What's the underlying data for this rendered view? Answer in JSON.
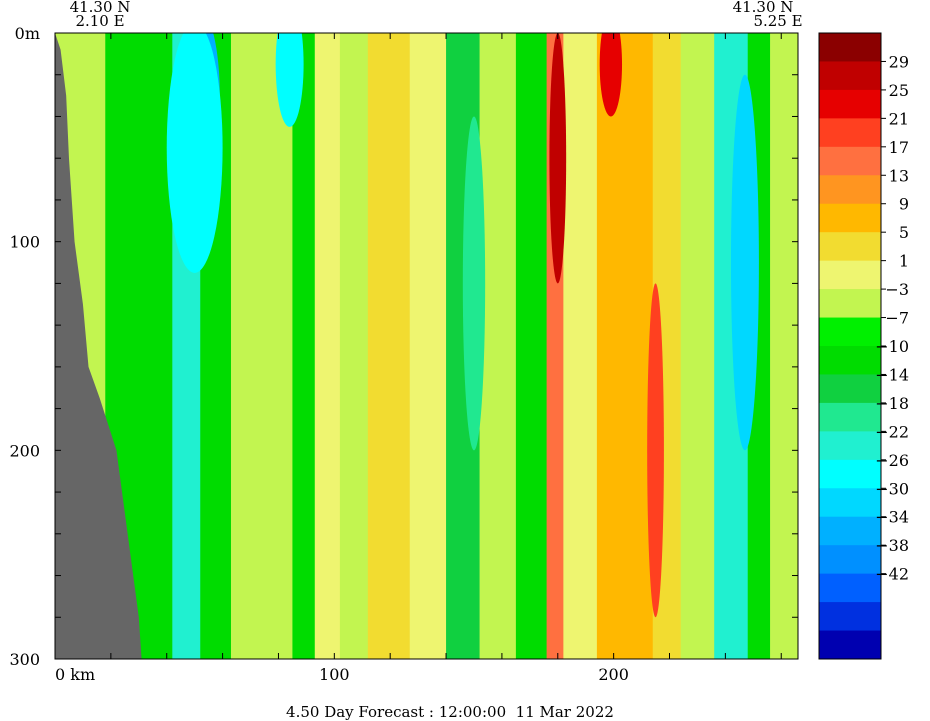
{
  "chart_data": {
    "type": "heatmap",
    "title": "4.50 Day Forecast : 12:00:00  11 Mar 2022",
    "corner_left": {
      "lat": "41.30 N",
      "lon": "2.10 E"
    },
    "corner_right": {
      "lat": "41.30 N",
      "lon": "5.25 E"
    },
    "xlabel": "km",
    "xlim": [
      0,
      266
    ],
    "ylim": [
      0,
      300
    ],
    "x_ticks": [
      {
        "value": 0,
        "label": "0 km"
      },
      {
        "value": 100,
        "label": "100"
      },
      {
        "value": 200,
        "label": "200"
      }
    ],
    "y_ticks": [
      {
        "value": 0,
        "label": "0m"
      },
      {
        "value": 100,
        "label": "100"
      },
      {
        "value": 200,
        "label": "200"
      },
      {
        "value": 300,
        "label": "300"
      }
    ],
    "colorbar": {
      "labels": [
        "29",
        "25",
        "21",
        "17",
        "13",
        "9",
        "5",
        "1",
        "−3",
        "−7",
        "−10",
        "−14",
        "−18",
        "−22",
        "−26",
        "−30",
        "−34",
        "−38",
        "−42"
      ],
      "colors": [
        "#8b0000",
        "#c00000",
        "#e60000",
        "#ff4020",
        "#ff7040",
        "#ff9520",
        "#ffb800",
        "#f2dc30",
        "#eef570",
        "#c2f550",
        "#00f000",
        "#00dc00",
        "#10d040",
        "#20e890",
        "#20f0d0",
        "#00ffff",
        "#00d8ff",
        "#00b0ff",
        "#0090ff",
        "#0060ff",
        "#0030e0",
        "#0000b0"
      ]
    },
    "land_color": "#666666",
    "land_profile_km": [
      [
        0,
        0
      ],
      [
        2,
        8
      ],
      [
        4,
        30
      ],
      [
        5,
        60
      ],
      [
        7,
        100
      ],
      [
        10,
        130
      ],
      [
        12,
        160
      ],
      [
        16,
        175
      ],
      [
        22,
        200
      ],
      [
        25,
        230
      ],
      [
        28,
        260
      ],
      [
        30,
        280
      ],
      [
        31,
        300
      ]
    ],
    "columns": [
      {
        "x0": 0,
        "x1": 18,
        "value": -2
      },
      {
        "x0": 18,
        "x1": 42,
        "value": -10
      },
      {
        "x0": 42,
        "x1": 52,
        "value": -22
      },
      {
        "x0": 52,
        "x1": 63,
        "value": -10
      },
      {
        "x0": 63,
        "x1": 85,
        "value": -3
      },
      {
        "x0": 85,
        "x1": 93,
        "value": -10
      },
      {
        "x0": 93,
        "x1": 102,
        "value": 4
      },
      {
        "x0": 102,
        "x1": 112,
        "value": -1
      },
      {
        "x0": 112,
        "x1": 127,
        "value": 6
      },
      {
        "x0": 127,
        "x1": 140,
        "value": 2
      },
      {
        "x0": 140,
        "x1": 152,
        "value": -12
      },
      {
        "x0": 152,
        "x1": 165,
        "value": -3
      },
      {
        "x0": 165,
        "x1": 176,
        "value": -10
      },
      {
        "x0": 176,
        "x1": 182,
        "value": 20
      },
      {
        "x0": 182,
        "x1": 194,
        "value": 4
      },
      {
        "x0": 194,
        "x1": 214,
        "value": 11
      },
      {
        "x0": 214,
        "x1": 224,
        "value": 6
      },
      {
        "x0": 224,
        "x1": 236,
        "value": -2
      },
      {
        "x0": 236,
        "x1": 248,
        "value": -20
      },
      {
        "x0": 248,
        "x1": 256,
        "value": -10
      },
      {
        "x0": 256,
        "x1": 266,
        "value": -2
      }
    ],
    "features": [
      {
        "cx": 52,
        "cy": 15,
        "rx": 4,
        "ry": 20,
        "value": -42
      },
      {
        "cx": 52,
        "cy": 30,
        "rx": 7,
        "ry": 40,
        "value": -34
      },
      {
        "cx": 50,
        "cy": 55,
        "rx": 10,
        "ry": 60,
        "value": -26
      },
      {
        "cx": 84,
        "cy": 15,
        "rx": 5,
        "ry": 30,
        "value": -26
      },
      {
        "cx": 247,
        "cy": 110,
        "rx": 5,
        "ry": 90,
        "value": -30
      },
      {
        "cx": 180,
        "cy": 60,
        "rx": 3,
        "ry": 60,
        "value": 29
      },
      {
        "cx": 199,
        "cy": 15,
        "rx": 4,
        "ry": 25,
        "value": 25
      },
      {
        "cx": 215,
        "cy": 200,
        "rx": 3,
        "ry": 80,
        "value": 21
      },
      {
        "cx": 150,
        "cy": 120,
        "rx": 4,
        "ry": 80,
        "value": -18
      }
    ]
  }
}
